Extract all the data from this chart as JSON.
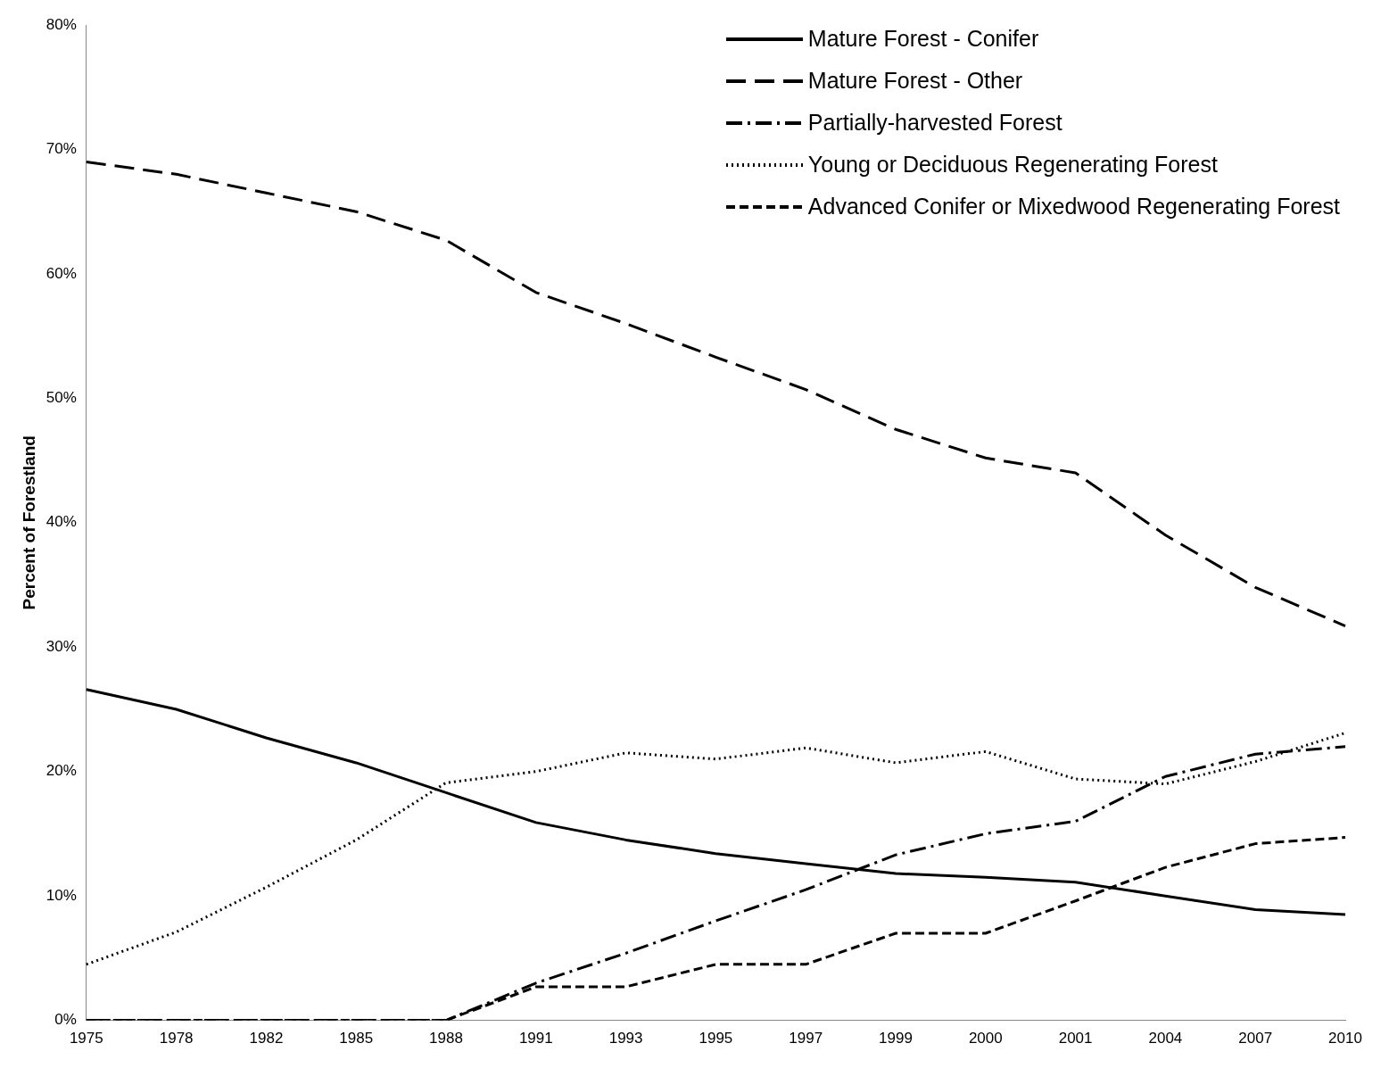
{
  "chart_data": {
    "type": "line",
    "ylabel": "Percent of Forestland",
    "legend": "top right",
    "categories": [
      "1975",
      "1978",
      "1982",
      "1985",
      "1988",
      "1991",
      "1993",
      "1995",
      "1997",
      "1999",
      "2000",
      "2001",
      "2004",
      "2007",
      "2010"
    ],
    "ylim": [
      0,
      80
    ],
    "yticks": [
      {
        "value": 0,
        "label": "0%"
      },
      {
        "value": 10,
        "label": "10%"
      },
      {
        "value": 20,
        "label": "20%"
      },
      {
        "value": 30,
        "label": "30%"
      },
      {
        "value": 40,
        "label": "40%"
      },
      {
        "value": 50,
        "label": "50%"
      },
      {
        "value": 60,
        "label": "60%"
      },
      {
        "value": 70,
        "label": "70%"
      },
      {
        "value": 80,
        "label": "80%"
      }
    ],
    "series": [
      {
        "name": "Mature Forest - Conifer",
        "color": "#000000",
        "line_style": "solid",
        "values": [
          26.6,
          25.0,
          22.7,
          20.7,
          18.3,
          15.9,
          14.5,
          13.4,
          12.6,
          11.8,
          11.5,
          11.1,
          10.0,
          8.9,
          8.5
        ]
      },
      {
        "name": "Mature Forest - Other",
        "color": "#000000",
        "line_style": "dashed",
        "values": [
          69.0,
          68.0,
          66.5,
          65.0,
          62.7,
          58.5,
          56.0,
          53.3,
          50.7,
          47.5,
          45.2,
          44.0,
          39.0,
          34.8,
          31.7
        ]
      },
      {
        "name": "Partially-harvested Forest",
        "color": "#000000",
        "line_style": "dashdot",
        "values": [
          0,
          0,
          0,
          0,
          0,
          3.0,
          5.4,
          8.0,
          10.5,
          13.3,
          15.0,
          16.0,
          19.6,
          21.4,
          22.0
        ]
      },
      {
        "name": "Young or Deciduous Regenerating Forest",
        "color": "#000000",
        "line_style": "dotted",
        "values": [
          4.5,
          7.1,
          10.7,
          14.5,
          19.1,
          20.0,
          21.5,
          21.0,
          21.9,
          20.7,
          21.6,
          19.4,
          19.0,
          20.8,
          23.1
        ]
      },
      {
        "name": "Advanced Conifer or Mixedwood Regenerating Forest",
        "color": "#000000",
        "line_style": "shortdash",
        "values": [
          0,
          0,
          0,
          0,
          0,
          2.7,
          2.7,
          4.5,
          4.5,
          7.0,
          7.0,
          9.6,
          12.3,
          14.2,
          14.7
        ]
      }
    ]
  }
}
